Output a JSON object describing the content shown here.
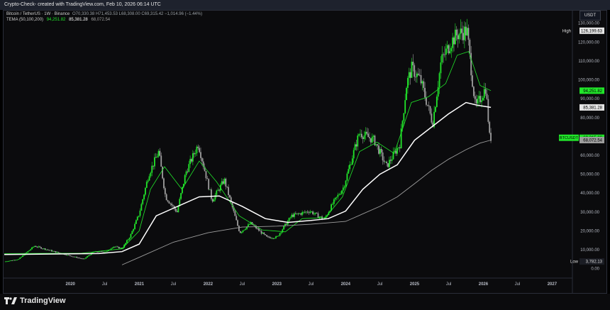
{
  "header": {
    "title": "Crypto-Check- created with TradingView.com, Feb 10, 2026 06:14 UTC"
  },
  "legend": {
    "symbol": "Bitcoin / TetherUS · 1W · Binance",
    "ohlc": "O70,330.38 H71,453.53 L68,308.00 C69,315.42 −1,014.96 (−1.44%)",
    "indicator": "TEMA (50,100,200)",
    "ma_values": [
      "94,251.82",
      "85,381.28",
      "68,072.54"
    ]
  },
  "brand": {
    "name": "TradingView"
  },
  "price_axis": {
    "currency": "USDT",
    "high_label": "High",
    "high_value": "126,199.63",
    "low_label": "Low",
    "low_value": "3,782.13",
    "symbol_tag": "BTCUSDT"
  },
  "colors": {
    "background": "#0b0b0d",
    "candle_up": "#21e62a",
    "candle_down": "#9e9e9e",
    "ma_fast": "#21e62a",
    "ma_mid": "#ffffff",
    "ma_slow": "#9e9e9e"
  },
  "chart_data": {
    "type": "candlestick",
    "grid": false,
    "y_ticks": [
      0,
      10000,
      20000,
      30000,
      40000,
      50000,
      60000,
      70000,
      80000,
      90000,
      100000,
      110000,
      120000,
      130000
    ],
    "ylim": [
      -5000,
      131000
    ],
    "x_ticks": [
      {
        "label": "2020",
        "date": "2020-01-01"
      },
      {
        "label": "Jul",
        "date": "2020-07-01"
      },
      {
        "label": "2021",
        "date": "2021-01-01"
      },
      {
        "label": "Jul",
        "date": "2021-07-01"
      },
      {
        "label": "2022",
        "date": "2022-01-01"
      },
      {
        "label": "Jul",
        "date": "2022-07-01"
      },
      {
        "label": "2023",
        "date": "2023-01-01"
      },
      {
        "label": "Jul",
        "date": "2023-07-01"
      },
      {
        "label": "2024",
        "date": "2024-01-01"
      },
      {
        "label": "Jul",
        "date": "2024-07-01"
      },
      {
        "label": "2025",
        "date": "2025-01-01"
      },
      {
        "label": "Jul",
        "date": "2025-07-01"
      },
      {
        "label": "2026",
        "date": "2026-01-01"
      },
      {
        "label": "Jul",
        "date": "2026-07-01"
      },
      {
        "label": "2027",
        "date": "2027-01-01"
      }
    ],
    "xlim": [
      "2019-01-15",
      "2027-04-15"
    ],
    "price_path": [
      [
        "2019-01-15",
        3700
      ],
      [
        "2019-04-01",
        5000
      ],
      [
        "2019-06-24",
        12000
      ],
      [
        "2019-09-01",
        10000
      ],
      [
        "2019-12-15",
        7200
      ],
      [
        "2020-03-12",
        5000
      ],
      [
        "2020-05-01",
        8800
      ],
      [
        "2020-07-15",
        9200
      ],
      [
        "2020-08-15",
        11800
      ],
      [
        "2020-10-01",
        10600
      ],
      [
        "2020-11-15",
        17500
      ],
      [
        "2020-12-31",
        29000
      ],
      [
        "2021-02-20",
        50000
      ],
      [
        "2021-04-14",
        62000
      ],
      [
        "2021-05-20",
        38000
      ],
      [
        "2021-07-20",
        30000
      ],
      [
        "2021-09-05",
        51000
      ],
      [
        "2021-11-10",
        66000
      ],
      [
        "2022-01-22",
        36000
      ],
      [
        "2022-03-28",
        47000
      ],
      [
        "2022-06-18",
        19000
      ],
      [
        "2022-08-15",
        24000
      ],
      [
        "2022-11-10",
        16500
      ],
      [
        "2023-01-01",
        16600
      ],
      [
        "2023-03-20",
        28000
      ],
      [
        "2023-06-25",
        30500
      ],
      [
        "2023-09-10",
        26000
      ],
      [
        "2023-10-25",
        34500
      ],
      [
        "2023-12-20",
        43000
      ],
      [
        "2024-03-14",
        72000
      ],
      [
        "2024-06-01",
        68000
      ],
      [
        "2024-08-05",
        54000
      ],
      [
        "2024-10-15",
        66000
      ],
      [
        "2024-11-20",
        98000
      ],
      [
        "2024-12-17",
        106000
      ],
      [
        "2025-02-01",
        100000
      ],
      [
        "2025-04-07",
        77000
      ],
      [
        "2025-05-22",
        110000
      ],
      [
        "2025-07-14",
        120000
      ],
      [
        "2025-08-14",
        124000
      ],
      [
        "2025-10-06",
        126000
      ],
      [
        "2025-11-20",
        85000
      ],
      [
        "2026-01-14",
        96000
      ],
      [
        "2026-02-06",
        66000
      ],
      [
        "2026-02-10",
        69315
      ]
    ],
    "series": [
      {
        "values": [
          [
            "2019-01-15",
            8000
          ],
          [
            "2020-03-01",
            8200
          ],
          [
            "2020-10-01",
            10500
          ],
          [
            "2020-12-31",
            20000
          ],
          [
            "2021-03-01",
            42000
          ],
          [
            "2021-05-15",
            54000
          ],
          [
            "2021-08-15",
            42000
          ],
          [
            "2021-11-15",
            57000
          ],
          [
            "2022-02-15",
            46000
          ],
          [
            "2022-06-15",
            28000
          ],
          [
            "2022-10-15",
            20500
          ],
          [
            "2023-02-15",
            19500
          ],
          [
            "2023-05-15",
            26500
          ],
          [
            "2023-09-15",
            27000
          ],
          [
            "2023-12-15",
            38000
          ],
          [
            "2024-03-15",
            62000
          ],
          [
            "2024-06-15",
            67000
          ],
          [
            "2024-09-15",
            61000
          ],
          [
            "2024-12-15",
            88000
          ],
          [
            "2025-03-15",
            91000
          ],
          [
            "2025-06-15",
            98000
          ],
          [
            "2025-08-15",
            113000
          ],
          [
            "2025-10-15",
            115000
          ],
          [
            "2025-12-15",
            97000
          ],
          [
            "2026-02-10",
            94251.82
          ]
        ]
      },
      {
        "values": [
          [
            "2019-01-15",
            7500
          ],
          [
            "2020-06-01",
            8000
          ],
          [
            "2020-10-01",
            9000
          ],
          [
            "2020-12-31",
            13000
          ],
          [
            "2021-04-01",
            28000
          ],
          [
            "2021-07-01",
            32000
          ],
          [
            "2021-11-15",
            38000
          ],
          [
            "2022-03-01",
            38500
          ],
          [
            "2022-07-01",
            33000
          ],
          [
            "2022-11-01",
            26500
          ],
          [
            "2023-03-01",
            24500
          ],
          [
            "2023-07-01",
            25500
          ],
          [
            "2023-10-01",
            26500
          ],
          [
            "2024-01-01",
            30500
          ],
          [
            "2024-04-01",
            42000
          ],
          [
            "2024-07-01",
            50000
          ],
          [
            "2024-10-01",
            55000
          ],
          [
            "2025-01-01",
            68000
          ],
          [
            "2025-04-01",
            75000
          ],
          [
            "2025-07-01",
            82000
          ],
          [
            "2025-10-01",
            88000
          ],
          [
            "2025-12-01",
            86500
          ],
          [
            "2026-02-10",
            85381.28
          ]
        ]
      },
      {
        "values": [
          [
            "2020-10-01",
            2000
          ],
          [
            "2021-01-01",
            6000
          ],
          [
            "2021-07-01",
            14000
          ],
          [
            "2022-01-01",
            19000
          ],
          [
            "2022-07-01",
            22000
          ],
          [
            "2023-01-01",
            22500
          ],
          [
            "2023-07-01",
            23500
          ],
          [
            "2024-01-01",
            25000
          ],
          [
            "2024-07-01",
            33000
          ],
          [
            "2024-10-01",
            38000
          ],
          [
            "2025-01-01",
            45000
          ],
          [
            "2025-04-01",
            52000
          ],
          [
            "2025-07-01",
            58000
          ],
          [
            "2025-10-01",
            63000
          ],
          [
            "2025-12-15",
            66500
          ],
          [
            "2026-02-10",
            68072.54
          ]
        ]
      }
    ]
  }
}
